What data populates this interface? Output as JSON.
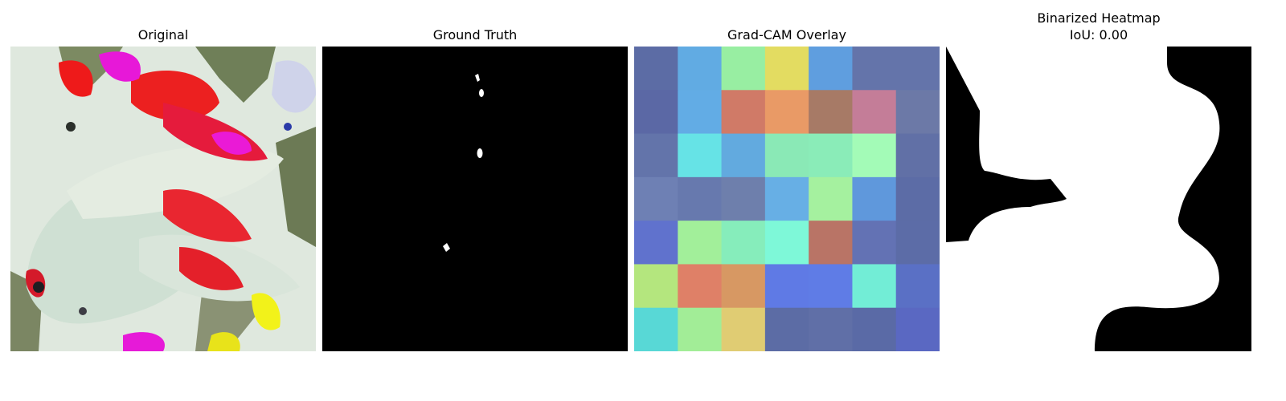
{
  "panels": [
    {
      "title": "Original"
    },
    {
      "title": "Ground Truth"
    },
    {
      "title": "Grad-CAM Overlay"
    },
    {
      "title": "Binarized Heatmap",
      "subtitle": "IoU: 0.00"
    }
  ],
  "gradcam_overlay": {
    "colors": [
      [
        "#5c6ca5",
        "#61abe3",
        "#98eea2",
        "#e3dc61",
        "#5f9edf",
        "#6474aa",
        "#6474aa"
      ],
      [
        "#5b68a5",
        "#62ace5",
        "#d07a67",
        "#e99a66",
        "#a77a66",
        "#c47d98",
        "#6c79a7"
      ],
      [
        "#6374aa",
        "#66e3e6",
        "#62aadf",
        "#8ae9b6",
        "#8aecb8",
        "#a3fbb7",
        "#6170a6"
      ],
      [
        "#6e80b4",
        "#6779ae",
        "#6e7fac",
        "#67afe5",
        "#a5f19f",
        "#5f98dc",
        "#5c6ca6"
      ],
      [
        "#6072cd",
        "#a2ef9a",
        "#86edbb",
        "#7ef8d8",
        "#b97466",
        "#6372b4",
        "#5c6ca7"
      ],
      [
        "#b4e67e",
        "#df8067",
        "#d79863",
        "#5f7ae5",
        "#5f7ce6",
        "#72edd6",
        "#5a70c5"
      ],
      [
        "#58d8d6",
        "#a2ed97",
        "#e0cc73",
        "#5c6ca5",
        "#606fa7",
        "#5a6aa6",
        "#5a68c2"
      ]
    ]
  }
}
